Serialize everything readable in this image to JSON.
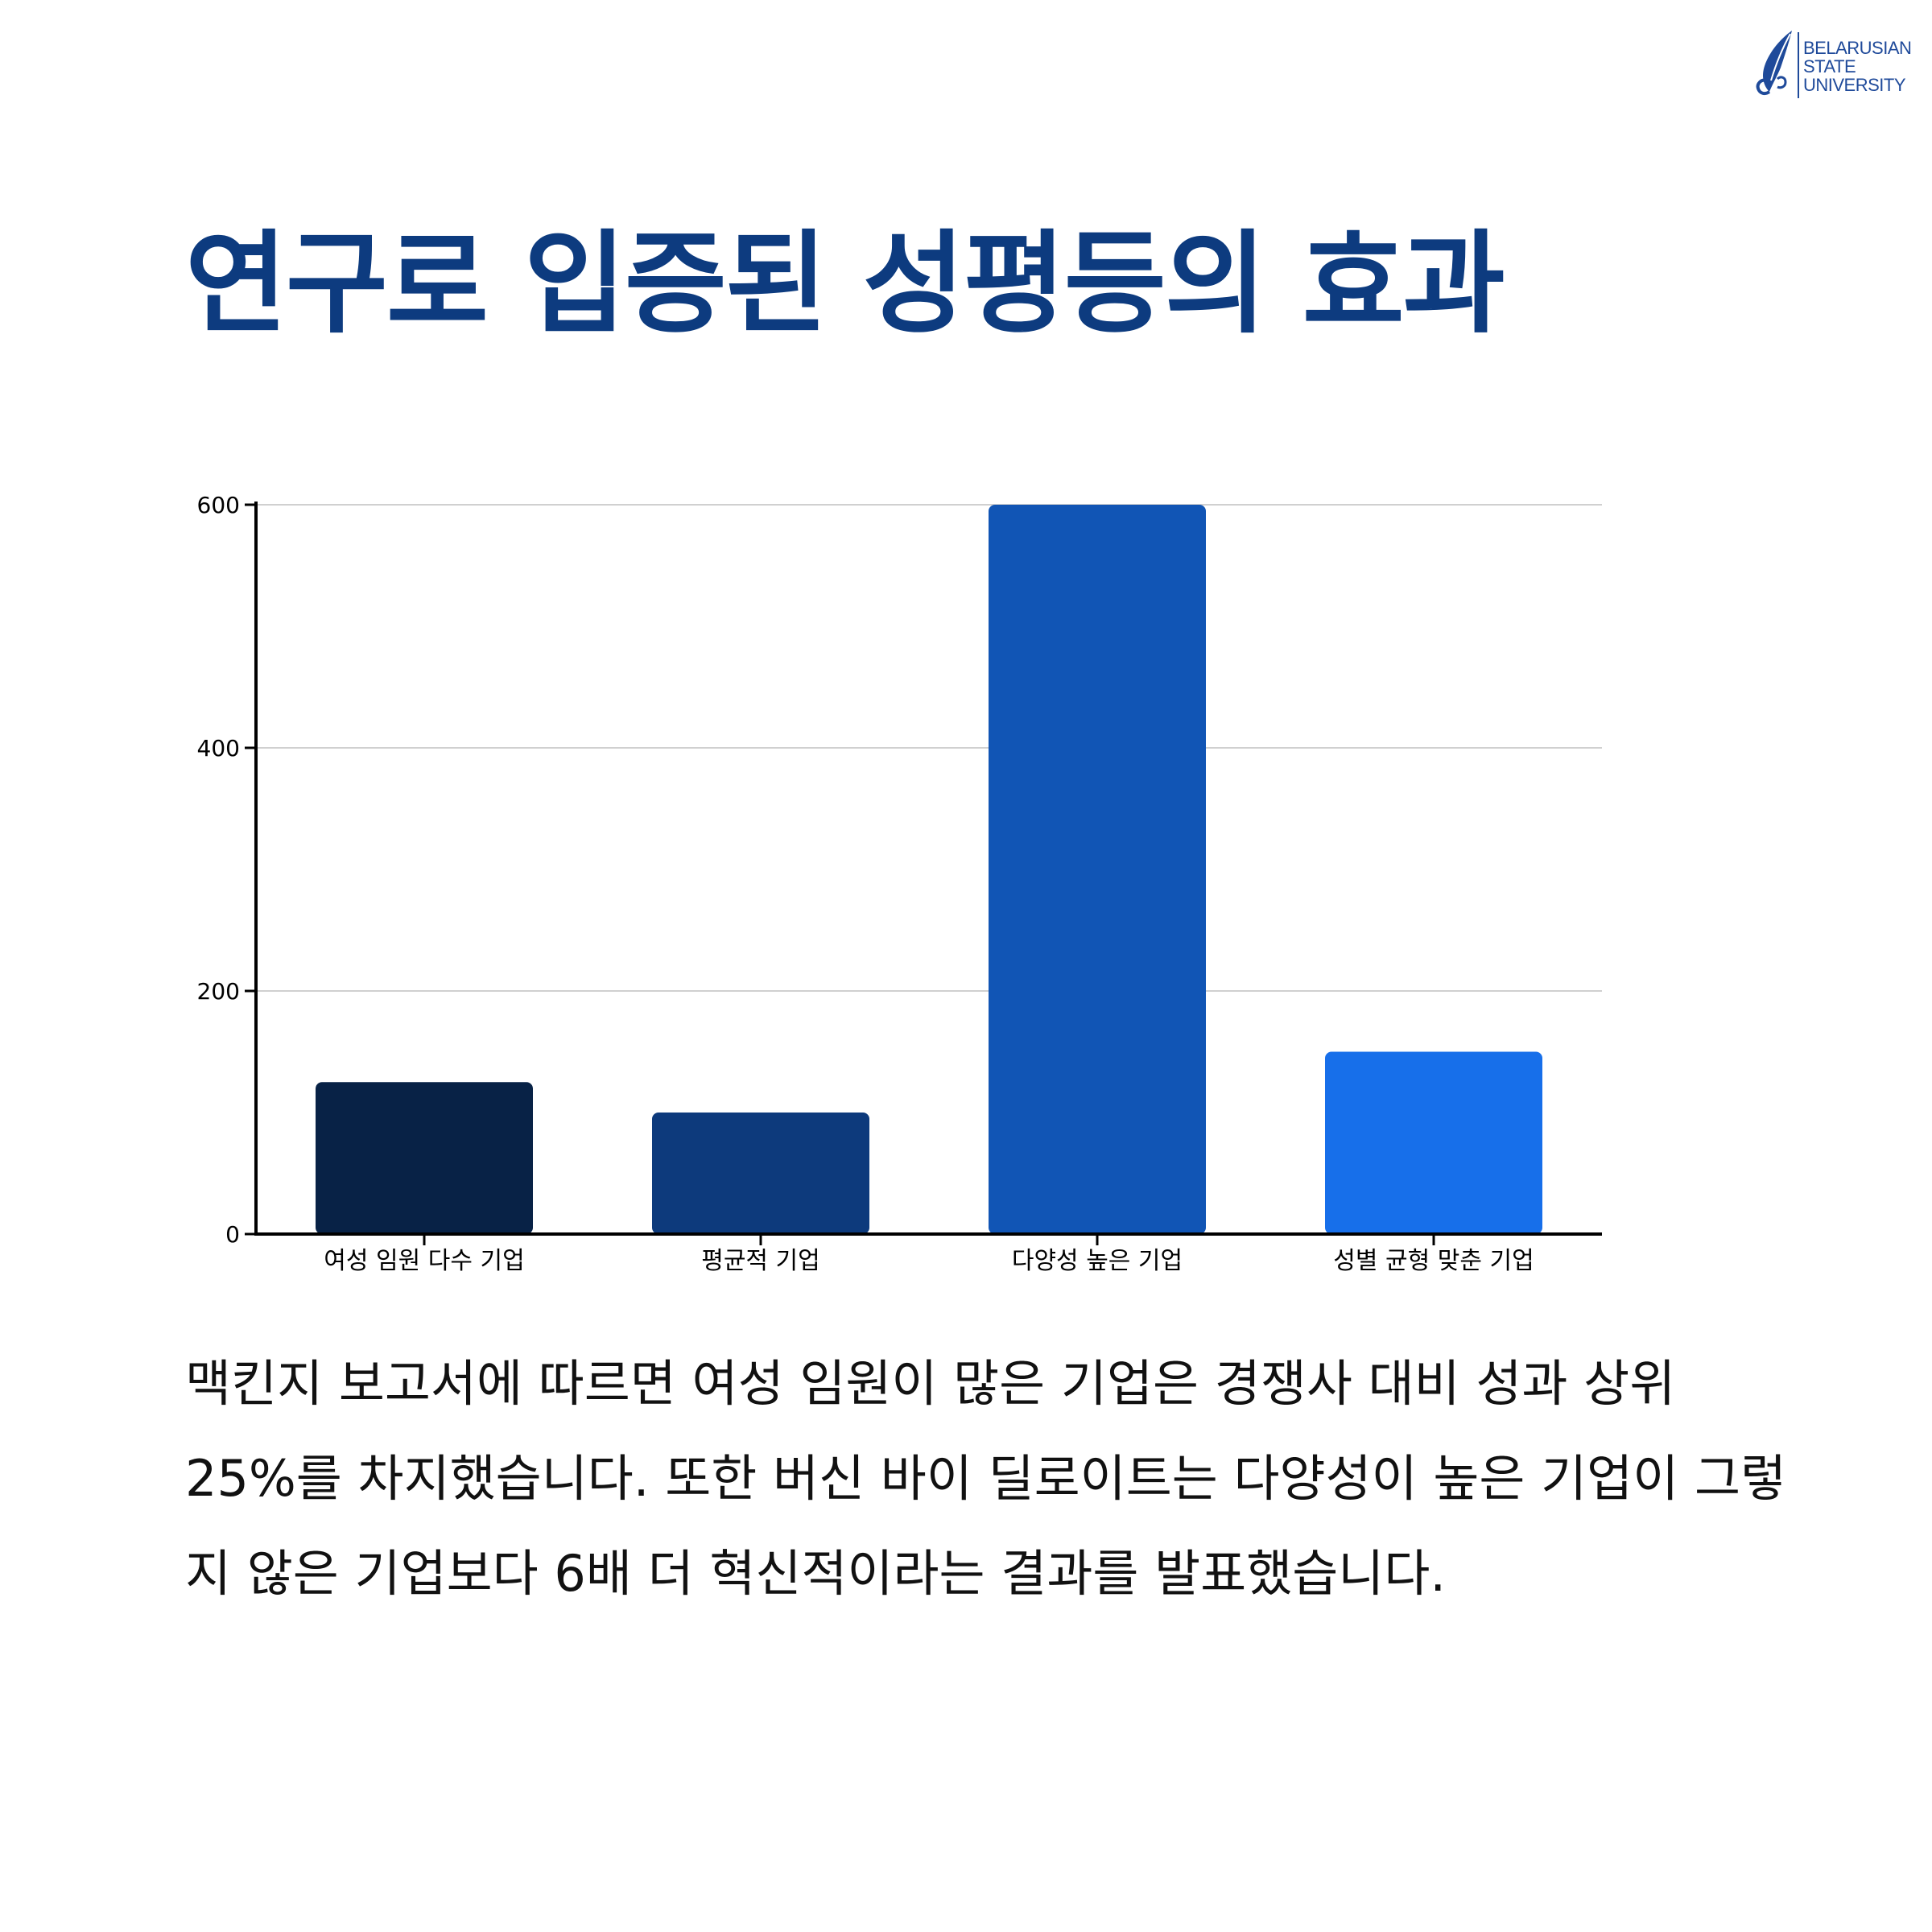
{
  "logo": {
    "lines": [
      "BELARUSIAN",
      "STATE",
      "UNIVERSITY"
    ],
    "icon": "feather-icon"
  },
  "title": "연구로 입증된 성평등의 효과",
  "body": "맥킨지 보고서에 따르면 여성 임원이 많은 기업은 경쟁사 대비 성과 상위 25%를 차지했습니다. 또한 버신 바이 딜로이트는 다양성이 높은 기업이 그렇지 않은 기업보다 6배 더 혁신적이라는 결과를 발표했습니다.",
  "colors": {
    "title": "#0d3b7f",
    "logo": "#1f4a9a",
    "grid": "#d0d0d0",
    "axis": "#000000"
  },
  "chart_data": {
    "type": "bar",
    "title": "",
    "xlabel": "",
    "ylabel": "",
    "categories": [
      "여성 임원 다수 기업",
      "평균적 기업",
      "다양성 높은 기업",
      "성별 균형 맞춘 기업"
    ],
    "values": [
      125,
      100,
      600,
      150
    ],
    "bar_colors": [
      "#082246",
      "#0d3a7c",
      "#1155b5",
      "#176fea"
    ],
    "yticks": [
      0,
      200,
      400,
      600
    ],
    "ylim": [
      0,
      600
    ],
    "grid": "horizontal",
    "legend": "none"
  }
}
